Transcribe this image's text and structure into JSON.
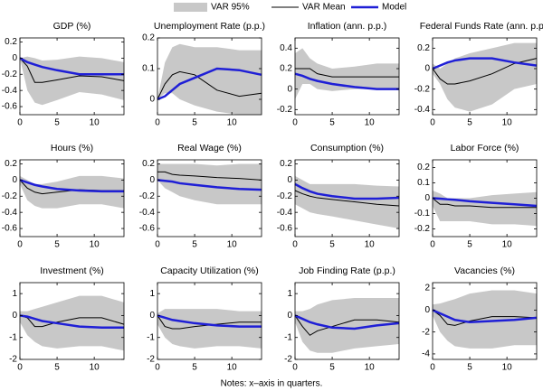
{
  "chart_data": [
    {
      "type": "line",
      "title": "GDP (%)",
      "x": [
        0,
        1,
        2,
        3,
        5,
        8,
        11,
        14
      ],
      "xlim": [
        0,
        14
      ],
      "xticks": [
        0,
        5,
        10
      ],
      "ylim": [
        -0.7,
        0.25
      ],
      "yticks": [
        -0.6,
        -0.4,
        -0.2,
        0,
        0.2
      ],
      "series": [
        {
          "name": "VAR 95%",
          "color": "#c8c8c8",
          "lower": [
            0,
            -0.4,
            -0.55,
            -0.58,
            -0.52,
            -0.42,
            -0.45,
            -0.52
          ],
          "upper": [
            0,
            0.02,
            0,
            -0.03,
            -0.02,
            0.02,
            0,
            -0.05
          ]
        },
        {
          "name": "VAR Mean",
          "color": "#000000",
          "values": [
            0,
            -0.1,
            -0.3,
            -0.3,
            -0.27,
            -0.22,
            -0.23,
            -0.28
          ]
        },
        {
          "name": "Model",
          "color": "#1f1fd6",
          "values": [
            0,
            -0.05,
            -0.08,
            -0.11,
            -0.15,
            -0.2,
            -0.2,
            -0.2
          ]
        }
      ]
    },
    {
      "type": "line",
      "title": "Unemployment Rate (p.p.)",
      "x": [
        0,
        1,
        2,
        3,
        5,
        8,
        11,
        14
      ],
      "xlim": [
        0,
        14
      ],
      "xticks": [
        0,
        5,
        10
      ],
      "ylim": [
        -0.05,
        0.2
      ],
      "yticks": [
        0,
        0.1,
        0.2
      ],
      "series": [
        {
          "name": "VAR 95%",
          "color": "#c8c8c8",
          "lower": [
            0,
            0.02,
            0.02,
            0,
            -0.02,
            -0.04,
            -0.05,
            -0.05
          ],
          "upper": [
            0,
            0.12,
            0.17,
            0.18,
            0.17,
            0.17,
            0.16,
            0.16
          ]
        },
        {
          "name": "VAR Mean",
          "color": "#000000",
          "values": [
            0,
            0.05,
            0.08,
            0.09,
            0.08,
            0.03,
            0.01,
            0.02
          ]
        },
        {
          "name": "Model",
          "color": "#1f1fd6",
          "values": [
            0,
            0.01,
            0.03,
            0.05,
            0.07,
            0.1,
            0.095,
            0.08
          ]
        }
      ]
    },
    {
      "type": "line",
      "title": "Inflation (ann. p.p.)",
      "x": [
        0,
        1,
        2,
        3,
        5,
        8,
        11,
        14
      ],
      "xlim": [
        0,
        14
      ],
      "xticks": [
        0,
        5,
        10
      ],
      "ylim": [
        -0.25,
        0.5
      ],
      "yticks": [
        -0.2,
        0,
        0.2,
        0.4
      ],
      "series": [
        {
          "name": "VAR 95%",
          "color": "#c8c8c8",
          "lower": [
            -0.1,
            0.05,
            0.05,
            0,
            -0.02,
            0,
            0,
            0
          ],
          "upper": [
            0.35,
            0.4,
            0.3,
            0.25,
            0.2,
            0.22,
            0.25,
            0.25
          ]
        },
        {
          "name": "VAR Mean",
          "color": "#000000",
          "values": [
            0.2,
            0.2,
            0.2,
            0.15,
            0.12,
            0.12,
            0.12,
            0.12
          ]
        },
        {
          "name": "Model",
          "color": "#1f1fd6",
          "values": [
            0.15,
            0.13,
            0.1,
            0.08,
            0.05,
            0.02,
            0,
            0
          ]
        }
      ]
    },
    {
      "type": "line",
      "title": "Federal Funds Rate (ann. p.p.)",
      "x": [
        0,
        1,
        2,
        3,
        5,
        8,
        11,
        14
      ],
      "xlim": [
        0,
        14
      ],
      "xticks": [
        0,
        5,
        10
      ],
      "ylim": [
        -0.45,
        0.3
      ],
      "yticks": [
        -0.4,
        -0.2,
        0,
        0.2
      ],
      "series": [
        {
          "name": "VAR 95%",
          "color": "#c8c8c8",
          "lower": [
            -0.05,
            -0.15,
            -0.3,
            -0.38,
            -0.42,
            -0.35,
            -0.2,
            -0.15
          ],
          "upper": [
            0.05,
            0,
            0.05,
            0.1,
            0.15,
            0.2,
            0.25,
            0.25
          ]
        },
        {
          "name": "VAR Mean",
          "color": "#000000",
          "values": [
            0,
            -0.1,
            -0.15,
            -0.15,
            -0.12,
            -0.05,
            0.05,
            0.1
          ]
        },
        {
          "name": "Model",
          "color": "#1f1fd6",
          "values": [
            0,
            0.03,
            0.06,
            0.08,
            0.1,
            0.1,
            0.06,
            0.03
          ]
        }
      ]
    },
    {
      "type": "line",
      "title": "Hours (%)",
      "x": [
        0,
        1,
        2,
        3,
        5,
        8,
        11,
        14
      ],
      "xlim": [
        0,
        14
      ],
      "xticks": [
        0,
        5,
        10
      ],
      "ylim": [
        -0.7,
        0.25
      ],
      "yticks": [
        -0.6,
        -0.4,
        -0.2,
        0,
        0.2
      ],
      "series": [
        {
          "name": "VAR 95%",
          "color": "#c8c8c8",
          "lower": [
            -0.05,
            -0.25,
            -0.32,
            -0.35,
            -0.35,
            -0.3,
            -0.3,
            -0.35
          ],
          "upper": [
            0.05,
            0,
            -0.05,
            -0.05,
            -0.02,
            0.05,
            0.05,
            0.02
          ]
        },
        {
          "name": "VAR Mean",
          "color": "#000000",
          "values": [
            0,
            -0.1,
            -0.15,
            -0.17,
            -0.15,
            -0.12,
            -0.13,
            -0.13
          ]
        },
        {
          "name": "Model",
          "color": "#1f1fd6",
          "values": [
            0,
            -0.03,
            -0.06,
            -0.08,
            -0.11,
            -0.13,
            -0.14,
            -0.14
          ]
        }
      ]
    },
    {
      "type": "line",
      "title": "Real Wage (%)",
      "x": [
        0,
        1,
        2,
        3,
        5,
        8,
        11,
        14
      ],
      "xlim": [
        0,
        14
      ],
      "xticks": [
        0,
        5,
        10
      ],
      "ylim": [
        -0.7,
        0.25
      ],
      "yticks": [
        -0.6,
        -0.4,
        -0.2,
        0,
        0.2
      ],
      "series": [
        {
          "name": "VAR 95%",
          "color": "#c8c8c8",
          "lower": [
            0,
            -0.1,
            -0.15,
            -0.2,
            -0.25,
            -0.3,
            -0.3,
            -0.3
          ],
          "upper": [
            0.2,
            0.2,
            0.2,
            0.2,
            0.2,
            0.18,
            0.2,
            0.2
          ]
        },
        {
          "name": "VAR Mean",
          "color": "#000000",
          "values": [
            0.1,
            0.1,
            0.07,
            0.06,
            0.05,
            0.03,
            0.02,
            0
          ]
        },
        {
          "name": "Model",
          "color": "#1f1fd6",
          "values": [
            0,
            -0.01,
            -0.02,
            -0.04,
            -0.06,
            -0.09,
            -0.11,
            -0.12
          ]
        }
      ]
    },
    {
      "type": "line",
      "title": "Consumption (%)",
      "x": [
        0,
        1,
        2,
        3,
        5,
        8,
        11,
        14
      ],
      "xlim": [
        0,
        14
      ],
      "xticks": [
        0,
        5,
        10
      ],
      "ylim": [
        -0.7,
        0.25
      ],
      "yticks": [
        -0.6,
        -0.4,
        -0.2,
        0,
        0.2
      ],
      "series": [
        {
          "name": "VAR 95%",
          "color": "#c8c8c8",
          "lower": [
            -0.3,
            -0.35,
            -0.4,
            -0.42,
            -0.45,
            -0.5,
            -0.55,
            -0.6
          ],
          "upper": [
            0.05,
            0,
            -0.05,
            -0.05,
            -0.05,
            -0.05,
            -0.07,
            -0.08
          ]
        },
        {
          "name": "VAR Mean",
          "color": "#000000",
          "values": [
            -0.13,
            -0.17,
            -0.2,
            -0.22,
            -0.24,
            -0.27,
            -0.3,
            -0.32
          ]
        },
        {
          "name": "Model",
          "color": "#1f1fd6",
          "values": [
            -0.05,
            -0.1,
            -0.14,
            -0.17,
            -0.2,
            -0.23,
            -0.23,
            -0.22
          ]
        }
      ]
    },
    {
      "type": "line",
      "title": "Labor Force (%)",
      "x": [
        0,
        1,
        2,
        3,
        5,
        8,
        11,
        14
      ],
      "xlim": [
        0,
        14
      ],
      "xticks": [
        0,
        5,
        10
      ],
      "ylim": [
        -0.25,
        0.25
      ],
      "yticks": [
        -0.2,
        -0.1,
        0,
        0.1,
        0.2
      ],
      "series": [
        {
          "name": "VAR 95%",
          "color": "#c8c8c8",
          "lower": [
            -0.05,
            -0.15,
            -0.15,
            -0.15,
            -0.15,
            -0.17,
            -0.17,
            -0.18
          ],
          "upper": [
            0.05,
            0.03,
            0,
            0,
            0,
            0.02,
            0.03,
            0.04
          ]
        },
        {
          "name": "VAR Mean",
          "color": "#000000",
          "values": [
            0,
            -0.04,
            -0.04,
            -0.05,
            -0.05,
            -0.06,
            -0.06,
            -0.06
          ]
        },
        {
          "name": "Model",
          "color": "#1f1fd6",
          "values": [
            0,
            -0.003,
            -0.007,
            -0.01,
            -0.02,
            -0.03,
            -0.04,
            -0.05
          ]
        }
      ]
    },
    {
      "type": "line",
      "title": "Investment (%)",
      "x": [
        0,
        1,
        2,
        3,
        5,
        8,
        11,
        14
      ],
      "xlim": [
        0,
        14
      ],
      "xticks": [
        0,
        5,
        10
      ],
      "ylim": [
        -2,
        1.5
      ],
      "yticks": [
        -2,
        -1,
        0,
        1
      ],
      "series": [
        {
          "name": "VAR 95%",
          "color": "#c8c8c8",
          "lower": [
            -0.3,
            -0.9,
            -1.2,
            -1.4,
            -1.5,
            -1.4,
            -1.4,
            -1.6
          ],
          "upper": [
            0.2,
            0.2,
            0.3,
            0.4,
            0.6,
            0.9,
            0.9,
            0.6
          ]
        },
        {
          "name": "VAR Mean",
          "color": "#000000",
          "values": [
            0,
            -0.1,
            -0.5,
            -0.5,
            -0.3,
            -0.1,
            -0.1,
            -0.4
          ]
        },
        {
          "name": "Model",
          "color": "#1f1fd6",
          "values": [
            0,
            -0.05,
            -0.15,
            -0.25,
            -0.35,
            -0.5,
            -0.55,
            -0.55
          ]
        }
      ]
    },
    {
      "type": "line",
      "title": "Capacity Utilization (%)",
      "x": [
        0,
        1,
        2,
        3,
        5,
        8,
        11,
        14
      ],
      "xlim": [
        0,
        14
      ],
      "xticks": [
        0,
        5,
        10
      ],
      "ylim": [
        -2,
        1.5
      ],
      "yticks": [
        -2,
        -1,
        0,
        1
      ],
      "series": [
        {
          "name": "VAR 95%",
          "color": "#c8c8c8",
          "lower": [
            -0.4,
            -1,
            -1.3,
            -1.4,
            -1.5,
            -1.4,
            -1.4,
            -1.5
          ],
          "upper": [
            0.1,
            0.3,
            0.3,
            0.3,
            0.3,
            0.3,
            0.2,
            0.2
          ]
        },
        {
          "name": "VAR Mean",
          "color": "#000000",
          "values": [
            0,
            -0.5,
            -0.6,
            -0.6,
            -0.5,
            -0.4,
            -0.3,
            -0.3
          ]
        },
        {
          "name": "Model",
          "color": "#1f1fd6",
          "values": [
            0,
            -0.1,
            -0.2,
            -0.25,
            -0.35,
            -0.45,
            -0.5,
            -0.5
          ]
        }
      ]
    },
    {
      "type": "line",
      "title": "Job Finding Rate (p.p.)",
      "x": [
        0,
        1,
        2,
        3,
        5,
        8,
        11,
        14
      ],
      "xlim": [
        0,
        14
      ],
      "xticks": [
        0,
        5,
        10
      ],
      "ylim": [
        -2,
        1.5
      ],
      "yticks": [
        -2,
        -1,
        0,
        1
      ],
      "series": [
        {
          "name": "VAR 95%",
          "color": "#c8c8c8",
          "lower": [
            -0.3,
            -1.2,
            -1.6,
            -1.7,
            -1.7,
            -1.5,
            -1.4,
            -1.3
          ],
          "upper": [
            0.2,
            0.2,
            0.3,
            0.5,
            0.7,
            0.8,
            0.8,
            0.8
          ]
        },
        {
          "name": "VAR Mean",
          "color": "#000000",
          "values": [
            0,
            -0.5,
            -0.9,
            -0.7,
            -0.5,
            -0.2,
            -0.2,
            -0.3
          ]
        },
        {
          "name": "Model",
          "color": "#1f1fd6",
          "values": [
            0,
            -0.15,
            -0.3,
            -0.4,
            -0.55,
            -0.6,
            -0.45,
            -0.35
          ]
        }
      ]
    },
    {
      "type": "line",
      "title": "Vacancies (%)",
      "x": [
        0,
        1,
        2,
        3,
        5,
        8,
        11,
        14
      ],
      "xlim": [
        0,
        14
      ],
      "xticks": [
        0,
        5,
        10
      ],
      "ylim": [
        -4.5,
        2.5
      ],
      "yticks": [
        -4,
        -2,
        0,
        2
      ],
      "series": [
        {
          "name": "VAR 95%",
          "color": "#c8c8c8",
          "lower": [
            -0.5,
            -2,
            -2.8,
            -3.3,
            -3.5,
            -3.5,
            -3.2,
            -3.2
          ],
          "upper": [
            0.5,
            0.6,
            0.8,
            1,
            1.5,
            1.8,
            1.8,
            1.5
          ]
        },
        {
          "name": "VAR Mean",
          "color": "#000000",
          "values": [
            0,
            -0.5,
            -1.3,
            -1.4,
            -1,
            -0.6,
            -0.6,
            -0.7
          ]
        },
        {
          "name": "Model",
          "color": "#1f1fd6",
          "values": [
            0,
            -0.3,
            -0.6,
            -0.9,
            -1.1,
            -1,
            -0.9,
            -0.7
          ]
        }
      ]
    }
  ],
  "note": "Notes: x–axis in quarters."
}
